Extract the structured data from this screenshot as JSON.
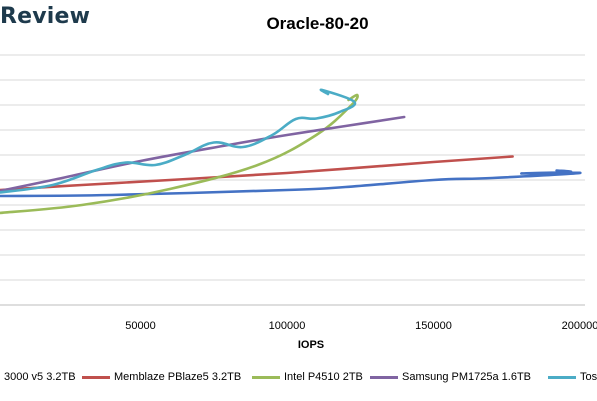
{
  "brand": {
    "text": "Review"
  },
  "chart_data": {
    "type": "line",
    "title": "Oracle-80-20",
    "xlabel": "IOPS",
    "ylabel": "",
    "xlim": [
      0,
      200000
    ],
    "x_ticks": [
      "50000",
      "100000",
      "150000",
      "200000"
    ],
    "grid": true,
    "legend_position": "bottom",
    "series": [
      {
        "name": "3000 v5 3.2TB",
        "color": "#4472c4",
        "points": [
          [
            2000,
            43.6
          ],
          [
            40000,
            44
          ],
          [
            100000,
            46
          ],
          [
            120000,
            47.2
          ],
          [
            150000,
            50
          ],
          [
            170000,
            50.8
          ],
          [
            200000,
            52.8
          ],
          [
            180000,
            52.6
          ],
          [
            196500,
            53.2
          ],
          [
            192000,
            53.8
          ]
        ]
      },
      {
        "name": "Memblaze PBlaze5 3.2TB",
        "color": "#c0504d",
        "points": [
          [
            2000,
            46
          ],
          [
            30000,
            48
          ],
          [
            60000,
            50
          ],
          [
            100000,
            52.8
          ],
          [
            150000,
            57.2
          ],
          [
            177000,
            59.4
          ]
        ]
      },
      {
        "name": "Intel P4510 2TB",
        "color": "#9bbb59",
        "points": [
          [
            2000,
            36.8
          ],
          [
            30000,
            40
          ],
          [
            60000,
            46.4
          ],
          [
            90000,
            56
          ],
          [
            110000,
            68
          ],
          [
            122000,
            80
          ],
          [
            124000,
            84
          ],
          [
            121000,
            82
          ]
        ]
      },
      {
        "name": "Samsung PM1725a 1.6TB",
        "color": "#8064a2",
        "points": [
          [
            2000,
            45.6
          ],
          [
            20000,
            50
          ],
          [
            50000,
            57.6
          ],
          [
            80000,
            64
          ],
          [
            100000,
            68
          ],
          [
            120000,
            71.6
          ],
          [
            140000,
            75.2
          ]
        ]
      },
      {
        "name": "Tos",
        "color": "#4bacc6",
        "points": [
          [
            2000,
            45
          ],
          [
            20000,
            48
          ],
          [
            35000,
            54
          ],
          [
            45000,
            57
          ],
          [
            55000,
            56
          ],
          [
            65000,
            60
          ],
          [
            75000,
            65
          ],
          [
            85000,
            63.2
          ],
          [
            95000,
            68
          ],
          [
            103000,
            74.4
          ],
          [
            110000,
            74.6
          ],
          [
            118000,
            77.2
          ],
          [
            123000,
            81.2
          ],
          [
            112000,
            86
          ],
          [
            114000,
            84.4
          ]
        ]
      }
    ]
  }
}
